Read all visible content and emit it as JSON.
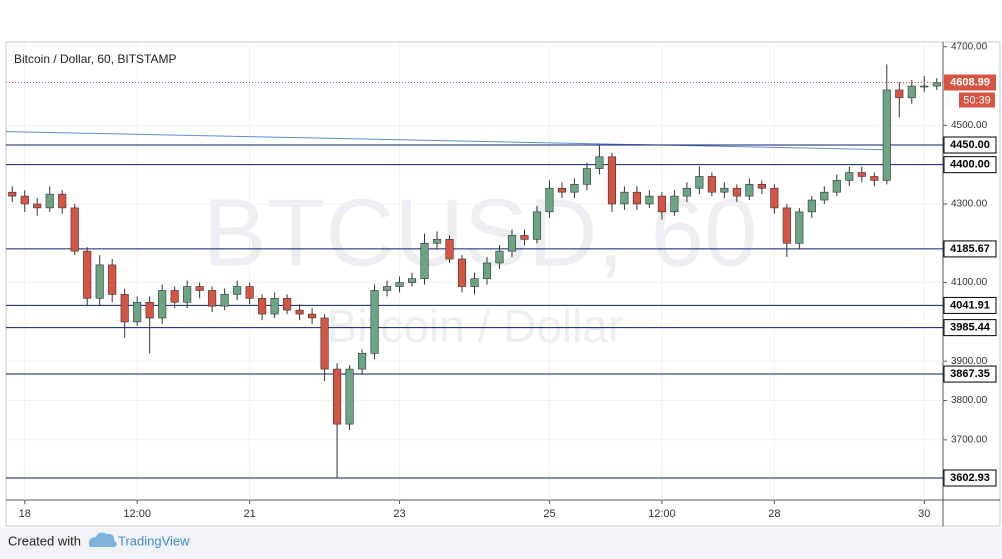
{
  "chart_data": {
    "type": "candlestick",
    "title": "Bitcoin / Dollar, 60, BITSTAMP",
    "watermark": {
      "symbol": "BTCUSD, 60",
      "description": "Bitcoin / Dollar"
    },
    "categories": [
      null,
      "18",
      null,
      null,
      null,
      null,
      null,
      null,
      null,
      null,
      "12:00",
      null,
      null,
      null,
      null,
      null,
      null,
      null,
      null,
      "21",
      null,
      null,
      null,
      null,
      null,
      null,
      null,
      null,
      null,
      null,
      null,
      "23",
      null,
      null,
      null,
      null,
      null,
      null,
      null,
      null,
      null,
      null,
      null,
      "25",
      null,
      null,
      null,
      null,
      null,
      null,
      null,
      null,
      "12:00",
      null,
      null,
      null,
      null,
      null,
      null,
      null,
      null,
      "28",
      null,
      null,
      null,
      null,
      null,
      null,
      null,
      null,
      null,
      null,
      null,
      "30",
      null
    ],
    "open": [
      4330,
      4320,
      4300,
      4290,
      4325,
      4290,
      4180,
      4060,
      4145,
      4070,
      4000,
      4050,
      4010,
      4080,
      4050,
      4090,
      4080,
      4040,
      4070,
      4090,
      4060,
      4020,
      4060,
      4030,
      4020,
      4010,
      3880,
      3740,
      3880,
      3920,
      4080,
      4090,
      4100,
      4110,
      4200,
      4210,
      4160,
      4090,
      4110,
      4150,
      4180,
      4220,
      4210,
      4280,
      4340,
      4330,
      4350,
      4390,
      4420,
      4300,
      4330,
      4300,
      4320,
      4280,
      4320,
      4340,
      4370,
      4330,
      4340,
      4320,
      4350,
      4340,
      4290,
      4200,
      4280,
      4310,
      4330,
      4360,
      4380,
      4370,
      4360,
      4590,
      4570,
      4600,
      4600
    ],
    "high": [
      4345,
      4335,
      4315,
      4345,
      4335,
      4300,
      4190,
      4170,
      4160,
      4085,
      4065,
      4065,
      4095,
      4090,
      4105,
      4100,
      4090,
      4085,
      4105,
      4100,
      4070,
      4075,
      4070,
      4045,
      4035,
      4020,
      3895,
      3890,
      3930,
      4095,
      4105,
      4115,
      4125,
      4225,
      4230,
      4220,
      4170,
      4125,
      4165,
      4195,
      4235,
      4235,
      4295,
      4360,
      4355,
      4365,
      4405,
      4450,
      4430,
      4345,
      4345,
      4335,
      4330,
      4335,
      4355,
      4395,
      4380,
      4355,
      4350,
      4365,
      4360,
      4350,
      4300,
      4290,
      4320,
      4345,
      4375,
      4395,
      4395,
      4380,
      4655,
      4610,
      4615,
      4625,
      4620
    ],
    "low": [
      4305,
      4280,
      4270,
      4280,
      4275,
      4170,
      4040,
      4040,
      4050,
      3960,
      3990,
      3920,
      3995,
      4035,
      4035,
      4060,
      4025,
      4030,
      4055,
      4045,
      4005,
      4010,
      4020,
      4005,
      3995,
      3850,
      3603,
      3725,
      3865,
      3905,
      4065,
      4075,
      4090,
      4095,
      4185,
      4150,
      4075,
      4070,
      4095,
      4135,
      4165,
      4195,
      4200,
      4265,
      4315,
      4315,
      4335,
      4375,
      4280,
      4285,
      4285,
      4290,
      4260,
      4270,
      4305,
      4325,
      4320,
      4315,
      4305,
      4310,
      4325,
      4275,
      4165,
      4185,
      4265,
      4300,
      4320,
      4345,
      4355,
      4345,
      4350,
      4520,
      4555,
      4585,
      4590
    ],
    "close": [
      4320,
      4300,
      4290,
      4325,
      4290,
      4180,
      4060,
      4145,
      4070,
      4000,
      4050,
      4010,
      4080,
      4050,
      4090,
      4080,
      4040,
      4070,
      4090,
      4060,
      4020,
      4060,
      4030,
      4020,
      4010,
      3880,
      3740,
      3880,
      3920,
      4080,
      4090,
      4100,
      4110,
      4200,
      4210,
      4160,
      4090,
      4110,
      4150,
      4180,
      4220,
      4210,
      4280,
      4340,
      4330,
      4350,
      4390,
      4420,
      4300,
      4330,
      4300,
      4320,
      4280,
      4320,
      4340,
      4370,
      4330,
      4340,
      4320,
      4350,
      4340,
      4290,
      4200,
      4280,
      4310,
      4330,
      4360,
      4380,
      4370,
      4360,
      4590,
      4570,
      4600,
      4600,
      4609
    ],
    "up_color": "#6ba583",
    "down_color": "#d75442",
    "ylim": [
      3547,
      4712
    ],
    "yticks": [
      {
        "value": 3700,
        "label": "3700.00"
      },
      {
        "value": 3800,
        "label": "3800.00"
      },
      {
        "value": 3900,
        "label": "3900.00"
      },
      {
        "value": 4100,
        "label": "4100.00"
      },
      {
        "value": 4300,
        "label": "4300.00"
      },
      {
        "value": 4500,
        "label": "4500.00"
      },
      {
        "value": 4700,
        "label": "4700.00"
      }
    ],
    "grid": true,
    "levels": [
      {
        "value": 4450,
        "label": "4450.00"
      },
      {
        "value": 4400,
        "label": "4400.00"
      },
      {
        "value": 4185.67,
        "label": "4185.67"
      },
      {
        "value": 4041.91,
        "label": "4041.91"
      },
      {
        "value": 3985.44,
        "label": "3985.44"
      },
      {
        "value": 3867.35,
        "label": "3867.35"
      },
      {
        "value": 3602.93,
        "label": "3602.93"
      }
    ],
    "level_color": "#0d1b6e",
    "last_price": {
      "value": 4608.99,
      "label": "4608.99",
      "color": "#d75442"
    },
    "countdown": "50:39",
    "trendline": {
      "from_index": 0,
      "from_value": 4484,
      "to_index": 70,
      "to_value": 4438,
      "color": "#5b8fd6"
    }
  },
  "footer": {
    "created_with": "Created with",
    "brand": "TradingView"
  }
}
